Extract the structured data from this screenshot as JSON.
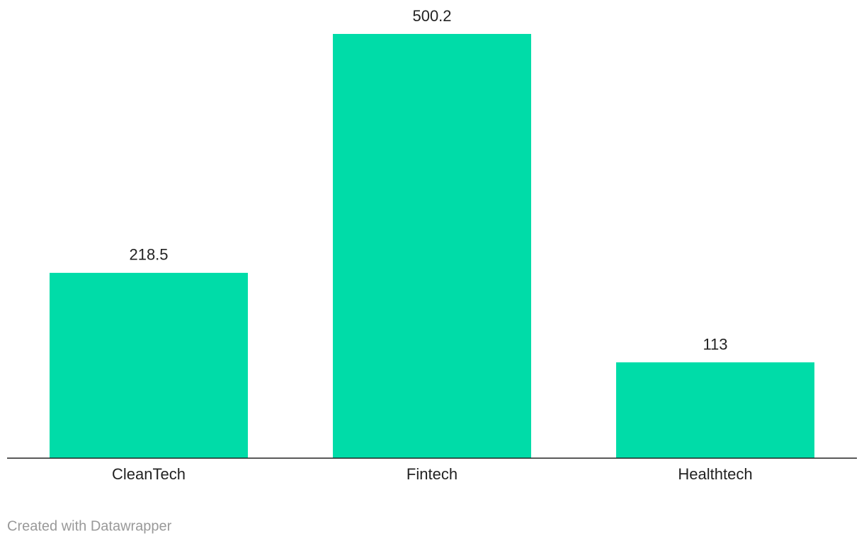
{
  "chart_data": {
    "type": "bar",
    "categories": [
      "CleanTech",
      "Fintech",
      "Healthtech"
    ],
    "values": [
      218.5,
      500.2,
      113
    ],
    "color": "#00dca8"
  },
  "footer": "Created with Datawrapper"
}
